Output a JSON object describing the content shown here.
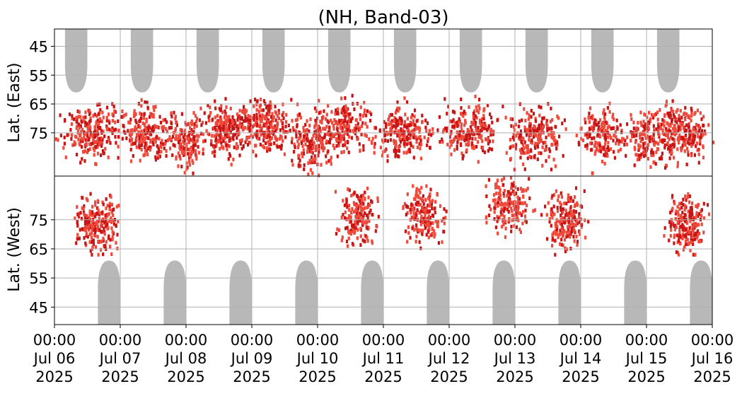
{
  "chart_data": {
    "type": "heatmap",
    "title": "(NH, Band-03)",
    "ylabel_upper": "Lat. (East)",
    "ylabel_lower": "Lat. (West)",
    "xlabel": "",
    "x_range": [
      "2025-07-06 00:00",
      "2025-07-16 00:00"
    ],
    "y_upper_range": [
      39,
      90
    ],
    "y_lower_range": [
      90,
      39
    ],
    "y_upper_ticks": [
      "45",
      "55",
      "65",
      "75"
    ],
    "y_lower_ticks": [
      "75",
      "65",
      "55",
      "45"
    ],
    "x_ticks": [
      {
        "time": "00:00",
        "date": "Jul 06",
        "year": "2025"
      },
      {
        "time": "00:00",
        "date": "Jul 07",
        "year": "2025"
      },
      {
        "time": "00:00",
        "date": "Jul 08",
        "year": "2025"
      },
      {
        "time": "00:00",
        "date": "Jul 09",
        "year": "2025"
      },
      {
        "time": "00:00",
        "date": "Jul 10",
        "year": "2025"
      },
      {
        "time": "00:00",
        "date": "Jul 11",
        "year": "2025"
      },
      {
        "time": "00:00",
        "date": "Jul 12",
        "year": "2025"
      },
      {
        "time": "00:00",
        "date": "Jul 13",
        "year": "2025"
      },
      {
        "time": "00:00",
        "date": "Jul 14",
        "year": "2025"
      },
      {
        "time": "00:00",
        "date": "Jul 15",
        "year": "2025"
      },
      {
        "time": "00:00",
        "date": "Jul 16",
        "year": "2025"
      }
    ],
    "grid": true,
    "colors": {
      "night": "#b8b8b8",
      "activity_light": "#f04a3c",
      "activity_dark": "#c81414",
      "grid": "#b0b0b0",
      "center_line": "#000000"
    },
    "night_regions": {
      "east_centers_day": [
        0.33,
        1.33,
        2.33,
        3.33,
        4.33,
        5.33,
        6.33,
        7.33,
        8.33,
        9.33
      ],
      "west_centers_day": [
        0.83,
        1.83,
        2.83,
        3.83,
        4.83,
        5.83,
        6.83,
        7.83,
        8.83,
        9.83
      ],
      "max_lat": 61,
      "half_width_day": 0.17
    },
    "activity_clusters": [
      {
        "day": 0.55,
        "lat_east": 75,
        "width_day": 0.45,
        "intensity": 0.9
      },
      {
        "day": 0.62,
        "lat_west": 73,
        "width_day": 0.35,
        "intensity": 0.85
      },
      {
        "day": 1.4,
        "lat_east": 75,
        "width_day": 0.4,
        "intensity": 0.8
      },
      {
        "day": 2.0,
        "lat_east": 78,
        "width_day": 0.3,
        "intensity": 0.6
      },
      {
        "day": 2.6,
        "lat_east": 74,
        "width_day": 0.4,
        "intensity": 0.85
      },
      {
        "day": 3.2,
        "lat_east": 73,
        "width_day": 0.45,
        "intensity": 0.85
      },
      {
        "day": 3.9,
        "lat_east": 79,
        "width_day": 0.4,
        "intensity": 0.7
      },
      {
        "day": 4.35,
        "lat_east": 73,
        "width_day": 0.45,
        "intensity": 0.8
      },
      {
        "day": 4.6,
        "lat_west": 76,
        "width_day": 0.3,
        "intensity": 0.7
      },
      {
        "day": 5.3,
        "lat_east": 75,
        "width_day": 0.45,
        "intensity": 0.85
      },
      {
        "day": 5.6,
        "lat_west": 77,
        "width_day": 0.3,
        "intensity": 0.75
      },
      {
        "day": 6.3,
        "lat_east": 74,
        "width_day": 0.45,
        "intensity": 0.85
      },
      {
        "day": 6.9,
        "lat_west": 80,
        "width_day": 0.35,
        "intensity": 0.7
      },
      {
        "day": 7.3,
        "lat_east": 76,
        "width_day": 0.45,
        "intensity": 0.85
      },
      {
        "day": 7.75,
        "lat_west": 74,
        "width_day": 0.3,
        "intensity": 0.75
      },
      {
        "day": 8.3,
        "lat_east": 76,
        "width_day": 0.35,
        "intensity": 0.65
      },
      {
        "day": 9.0,
        "lat_east": 77,
        "width_day": 0.4,
        "intensity": 0.7
      },
      {
        "day": 9.55,
        "lat_east": 75,
        "width_day": 0.4,
        "intensity": 0.85
      },
      {
        "day": 9.6,
        "lat_west": 73,
        "width_day": 0.3,
        "intensity": 0.8
      }
    ]
  }
}
